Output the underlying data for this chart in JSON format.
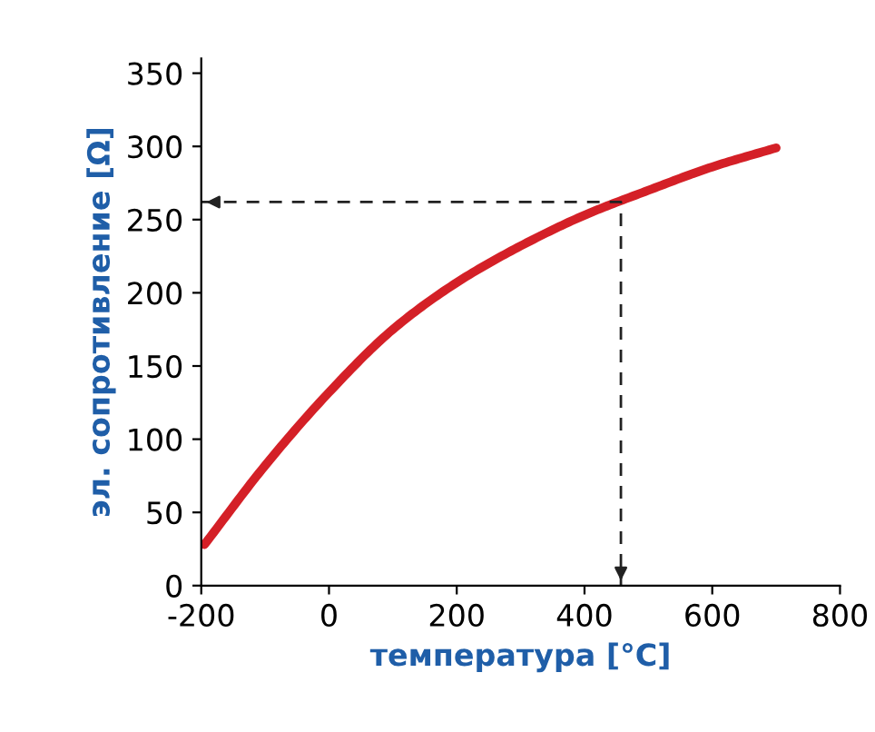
{
  "chart_data": {
    "type": "line",
    "xlabel": "температура [°C]",
    "ylabel": "эл. сопротивление [Ω]",
    "xlim": [
      -200,
      800
    ],
    "ylim": [
      0,
      360
    ],
    "xticks": [
      -200,
      0,
      200,
      400,
      600,
      800
    ],
    "yticks": [
      0,
      50,
      100,
      150,
      200,
      250,
      300,
      350
    ],
    "grid": false,
    "legend": false,
    "series": [
      {
        "color": "#d42027",
        "x": [
          -195,
          -100,
          0,
          100,
          200,
          300,
          400,
          500,
          600,
          700
        ],
        "values": [
          28,
          82,
          132,
          175,
          207,
          232,
          253,
          270,
          286,
          299
        ]
      },
      {
        "color": "#222222",
        "line_style": "dashed",
        "x": [
          -200,
          457,
          457
        ],
        "values": [
          262,
          262,
          0
        ]
      }
    ]
  }
}
